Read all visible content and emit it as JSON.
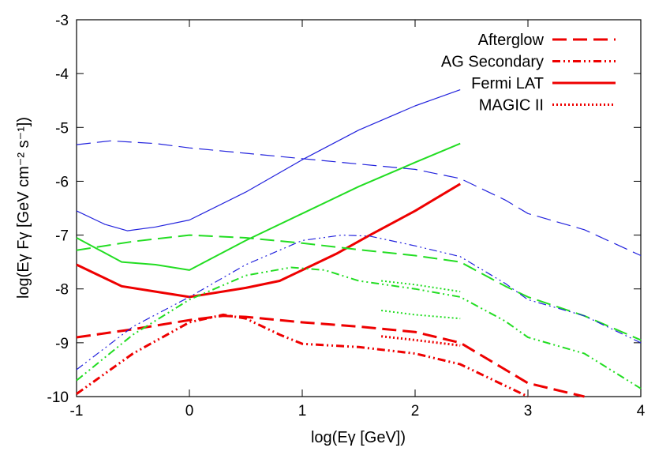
{
  "chart_data": {
    "type": "line",
    "title": "",
    "xlabel": "log(Eγ [GeV])",
    "ylabel": "log(Eγ Fγ [GeV cm⁻² s⁻¹])",
    "xlim": [
      -1,
      4
    ],
    "ylim": [
      -10,
      -3
    ],
    "xticks": [
      "-1",
      "0",
      "1",
      "2",
      "3",
      "4"
    ],
    "yticks": [
      "-10",
      "-9",
      "-8",
      "-7",
      "-6",
      "-5",
      "-4",
      "-3"
    ],
    "grid": false,
    "legend_position": "top-right",
    "legend": [
      {
        "label": "Afterglow",
        "dash": "long-dash",
        "color": "#ee0000"
      },
      {
        "label": "AG Secondary",
        "dash": "dash-dot-dot",
        "color": "#ee0000"
      },
      {
        "label": "Fermi LAT",
        "dash": "solid",
        "color": "#ee0000"
      },
      {
        "label": "MAGIC II",
        "dash": "dotted",
        "color": "#ee0000"
      }
    ],
    "series": [
      {
        "group": "red",
        "style": "afterglow",
        "color": "#ee0000",
        "width": 3,
        "x": [
          -1,
          -0.5,
          0,
          0.3,
          0.5,
          1,
          1.5,
          2,
          2.4,
          2.8,
          3.0,
          3.5
        ],
        "y": [
          -8.9,
          -8.75,
          -8.58,
          -8.5,
          -8.52,
          -8.62,
          -8.7,
          -8.8,
          -9.0,
          -9.5,
          -9.75,
          -10
        ]
      },
      {
        "group": "red",
        "style": "secondary",
        "color": "#ee0000",
        "width": 3,
        "x": [
          -1,
          -0.5,
          0,
          0.3,
          0.5,
          0.8,
          1,
          1.5,
          2,
          2.4,
          2.8,
          3.0
        ],
        "y": [
          -9.95,
          -9.2,
          -8.62,
          -8.48,
          -8.55,
          -8.85,
          -9.02,
          -9.08,
          -9.2,
          -9.4,
          -9.8,
          -10
        ]
      },
      {
        "group": "red",
        "style": "fermi",
        "color": "#ee0000",
        "width": 3,
        "x": [
          -1,
          -0.6,
          -0.3,
          0,
          0.5,
          0.8,
          1,
          1.3,
          1.6,
          2,
          2.4
        ],
        "y": [
          -7.55,
          -7.95,
          -8.05,
          -8.15,
          -7.98,
          -7.85,
          -7.65,
          -7.35,
          -7.0,
          -6.55,
          -6.05
        ]
      },
      {
        "group": "red",
        "style": "magic",
        "color": "#ee0000",
        "width": 3,
        "x": [
          1.7,
          2.0,
          2.4
        ],
        "y": [
          -8.88,
          -8.95,
          -9.05
        ]
      },
      {
        "group": "green",
        "style": "afterglow",
        "color": "#22dd22",
        "width": 2,
        "x": [
          -1,
          -0.5,
          0,
          0.5,
          1,
          1.5,
          2,
          2.4,
          2.8,
          3.0,
          3.5,
          4
        ],
        "y": [
          -7.28,
          -7.12,
          -7.0,
          -7.05,
          -7.15,
          -7.27,
          -7.38,
          -7.5,
          -7.95,
          -8.15,
          -8.5,
          -8.95
        ]
      },
      {
        "group": "green",
        "style": "secondary",
        "color": "#22dd22",
        "width": 2,
        "x": [
          -1,
          -0.5,
          0,
          0.5,
          0.9,
          1.2,
          1.5,
          2,
          2.4,
          2.8,
          3.0,
          3.5,
          4
        ],
        "y": [
          -9.7,
          -8.85,
          -8.2,
          -7.75,
          -7.6,
          -7.65,
          -7.85,
          -8.0,
          -8.15,
          -8.6,
          -8.9,
          -9.2,
          -9.85
        ]
      },
      {
        "group": "green",
        "style": "fermi",
        "color": "#22dd22",
        "width": 2,
        "x": [
          -1,
          -0.6,
          -0.3,
          0,
          0.5,
          1,
          1.5,
          2,
          2.4
        ],
        "y": [
          -7.05,
          -7.5,
          -7.55,
          -7.65,
          -7.1,
          -6.6,
          -6.1,
          -5.65,
          -5.3
        ]
      },
      {
        "group": "green",
        "style": "magic",
        "color": "#22dd22",
        "width": 2,
        "x": [
          1.7,
          2.0,
          2.4
        ],
        "y": [
          -8.4,
          -8.48,
          -8.55
        ]
      },
      {
        "group": "green",
        "style": "magic",
        "color": "#22dd22",
        "width": 2,
        "x": [
          1.7,
          2.0,
          2.4
        ],
        "y": [
          -7.85,
          -7.92,
          -8.05
        ]
      },
      {
        "group": "blue",
        "style": "afterglow",
        "color": "#2222dd",
        "width": 1.2,
        "x": [
          -1,
          -0.7,
          -0.3,
          0,
          0.5,
          1,
          1.5,
          2,
          2.4,
          2.8,
          3.0,
          3.5,
          4
        ],
        "y": [
          -5.32,
          -5.25,
          -5.3,
          -5.38,
          -5.48,
          -5.58,
          -5.68,
          -5.78,
          -5.95,
          -6.35,
          -6.6,
          -6.9,
          -7.38
        ]
      },
      {
        "group": "blue",
        "style": "secondary",
        "color": "#2222dd",
        "width": 1.2,
        "x": [
          -1,
          -0.5,
          0,
          0.5,
          1,
          1.35,
          1.6,
          2,
          2.4,
          2.8,
          3.0,
          3.5,
          4
        ],
        "y": [
          -9.5,
          -8.7,
          -8.15,
          -7.55,
          -7.1,
          -7.0,
          -7.02,
          -7.2,
          -7.4,
          -7.9,
          -8.2,
          -8.5,
          -9.0
        ]
      },
      {
        "group": "blue",
        "style": "fermi",
        "color": "#2222dd",
        "width": 1.2,
        "x": [
          -1,
          -0.75,
          -0.55,
          -0.3,
          0,
          0.5,
          1,
          1.5,
          2,
          2.4
        ],
        "y": [
          -6.55,
          -6.8,
          -6.92,
          -6.85,
          -6.72,
          -6.2,
          -5.6,
          -5.05,
          -4.6,
          -4.3
        ]
      }
    ]
  }
}
